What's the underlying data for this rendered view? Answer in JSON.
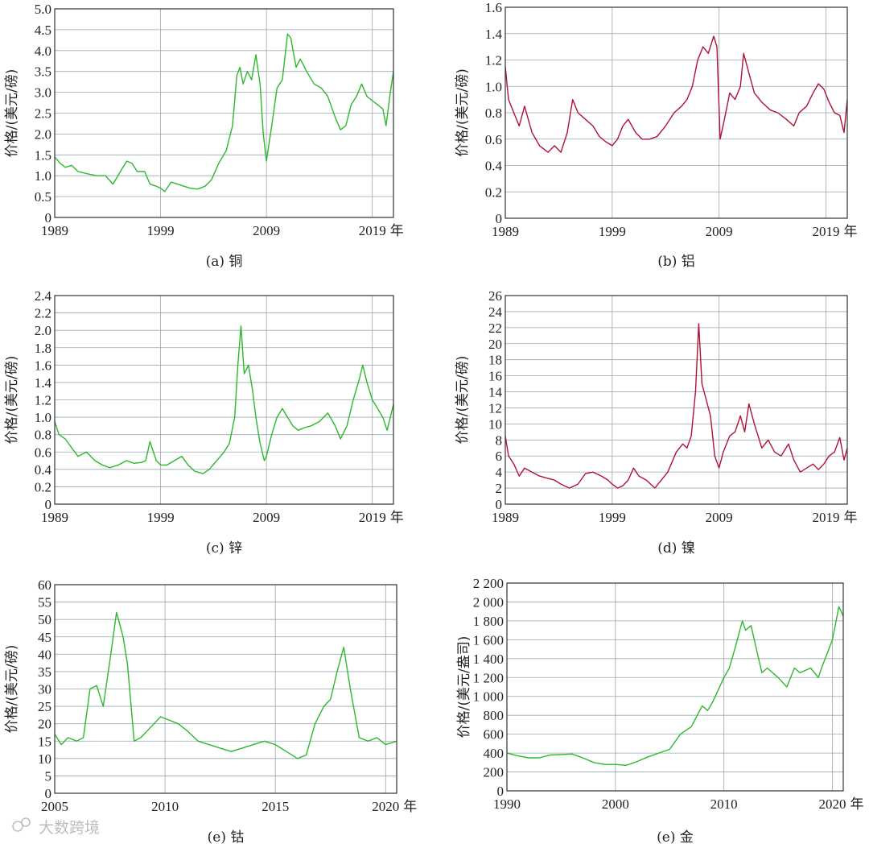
{
  "watermark": "大数跨境",
  "palette": {
    "green": "#2db82d",
    "red": "#b01236",
    "grid": "#9aa7b3",
    "axis": "#333333"
  },
  "chart_data": [
    {
      "id": "copper",
      "type": "line",
      "caption": "(a) 铜",
      "color": "#2db82d",
      "ylabel": "价格/(美元/磅)",
      "xlabel_suffix": "年",
      "xlim": [
        1989,
        2021
      ],
      "ylim": [
        0,
        5
      ],
      "yticks": [
        0,
        0.5,
        1.0,
        1.5,
        2.0,
        2.5,
        3.0,
        3.5,
        4.0,
        4.5,
        5.0
      ],
      "ytick_labels": [
        "0",
        "0.5",
        "1.0",
        "1.5",
        "2.0",
        "2.5",
        "3.0",
        "3.5",
        "4.0",
        "4.5",
        "5.0"
      ],
      "xticks": [
        1989,
        1999,
        2009,
        2019
      ],
      "x": [
        1989.0,
        1989.5,
        1990.0,
        1990.6,
        1991.2,
        1992.0,
        1993.0,
        1993.8,
        1994.5,
        1995.2,
        1995.8,
        1996.3,
        1996.8,
        1997.5,
        1998.0,
        1998.6,
        1999.0,
        1999.4,
        2000.0,
        2000.6,
        2001.2,
        2001.8,
        2002.5,
        2003.2,
        2003.8,
        2004.5,
        2005.2,
        2005.8,
        2006.2,
        2006.5,
        2006.8,
        2007.2,
        2007.6,
        2008.0,
        2008.4,
        2008.7,
        2009.0,
        2009.5,
        2010.0,
        2010.5,
        2011.0,
        2011.3,
        2011.8,
        2012.2,
        2012.8,
        2013.5,
        2014.2,
        2014.8,
        2015.5,
        2016.0,
        2016.5,
        2017.0,
        2017.5,
        2018.0,
        2018.5,
        2019.0,
        2019.5,
        2020.0,
        2020.3,
        2020.7,
        2021.0
      ],
      "y": [
        1.45,
        1.3,
        1.2,
        1.25,
        1.1,
        1.05,
        1.0,
        1.0,
        0.8,
        1.1,
        1.35,
        1.3,
        1.1,
        1.1,
        0.8,
        0.75,
        0.7,
        0.62,
        0.85,
        0.8,
        0.75,
        0.7,
        0.68,
        0.75,
        0.9,
        1.3,
        1.6,
        2.2,
        3.4,
        3.6,
        3.2,
        3.5,
        3.3,
        3.9,
        3.2,
        2.0,
        1.35,
        2.2,
        3.1,
        3.3,
        4.4,
        4.3,
        3.6,
        3.8,
        3.5,
        3.2,
        3.1,
        2.9,
        2.4,
        2.1,
        2.2,
        2.7,
        2.9,
        3.2,
        2.9,
        2.8,
        2.7,
        2.6,
        2.2,
        3.0,
        3.5
      ]
    },
    {
      "id": "aluminum",
      "type": "line",
      "caption": "(b) 铝",
      "color": "#b01236",
      "ylabel": "价格/(美元/磅)",
      "xlabel_suffix": "年",
      "xlim": [
        1989,
        2021
      ],
      "ylim": [
        0,
        1.6
      ],
      "yticks": [
        0,
        0.2,
        0.4,
        0.6,
        0.8,
        1.0,
        1.2,
        1.4,
        1.6
      ],
      "ytick_labels": [
        "0",
        "0.2",
        "0.4",
        "0.6",
        "0.8",
        "1.0",
        "1.2",
        "1.4",
        "1.6"
      ],
      "xticks": [
        1989,
        1999,
        2009,
        2019
      ],
      "x": [
        1989.0,
        1989.3,
        1989.8,
        1990.3,
        1990.8,
        1991.5,
        1992.2,
        1993.0,
        1993.6,
        1994.2,
        1994.8,
        1995.3,
        1995.8,
        1996.5,
        1997.2,
        1997.8,
        1998.4,
        1999.0,
        1999.5,
        2000.0,
        2000.5,
        2001.2,
        2001.8,
        2002.5,
        2003.2,
        2004.0,
        2004.8,
        2005.5,
        2006.0,
        2006.5,
        2007.0,
        2007.5,
        2008.0,
        2008.5,
        2008.8,
        2009.1,
        2009.5,
        2010.0,
        2010.5,
        2011.0,
        2011.3,
        2011.8,
        2012.3,
        2013.0,
        2013.8,
        2014.5,
        2015.3,
        2016.0,
        2016.5,
        2017.2,
        2017.8,
        2018.3,
        2018.8,
        2019.3,
        2019.8,
        2020.3,
        2020.7,
        2021.0
      ],
      "y": [
        1.15,
        0.9,
        0.8,
        0.7,
        0.85,
        0.65,
        0.55,
        0.5,
        0.55,
        0.5,
        0.65,
        0.9,
        0.8,
        0.75,
        0.7,
        0.62,
        0.58,
        0.55,
        0.6,
        0.7,
        0.75,
        0.65,
        0.6,
        0.6,
        0.62,
        0.7,
        0.8,
        0.85,
        0.9,
        1.0,
        1.2,
        1.3,
        1.25,
        1.38,
        1.3,
        0.6,
        0.75,
        0.95,
        0.9,
        1.0,
        1.25,
        1.1,
        0.95,
        0.88,
        0.82,
        0.8,
        0.75,
        0.7,
        0.8,
        0.85,
        0.95,
        1.02,
        0.98,
        0.88,
        0.8,
        0.78,
        0.65,
        0.9
      ]
    },
    {
      "id": "zinc",
      "type": "line",
      "caption": "(c) 锌",
      "color": "#2db82d",
      "ylabel": "价格/(美元/磅)",
      "xlabel_suffix": "年",
      "xlim": [
        1989,
        2021
      ],
      "ylim": [
        0,
        2.4
      ],
      "yticks": [
        0,
        0.2,
        0.4,
        0.6,
        0.8,
        1.0,
        1.2,
        1.4,
        1.6,
        1.8,
        2.0,
        2.2,
        2.4
      ],
      "ytick_labels": [
        "0",
        "0.2",
        "0.4",
        "0.6",
        "0.8",
        "1.0",
        "1.2",
        "1.4",
        "1.6",
        "1.8",
        "2.0",
        "2.2",
        "2.4"
      ],
      "xticks": [
        1989,
        1999,
        2009,
        2019
      ],
      "x": [
        1989.0,
        1989.4,
        1990.0,
        1990.6,
        1991.2,
        1992.0,
        1992.8,
        1993.5,
        1994.2,
        1995.0,
        1995.8,
        1996.5,
        1997.2,
        1997.6,
        1998.0,
        1998.6,
        1999.0,
        1999.6,
        2000.3,
        2001.0,
        2001.6,
        2002.2,
        2003.0,
        2003.6,
        2004.3,
        2005.0,
        2005.5,
        2006.0,
        2006.3,
        2006.6,
        2006.9,
        2007.3,
        2007.7,
        2008.0,
        2008.4,
        2008.8,
        2009.0,
        2009.5,
        2010.0,
        2010.5,
        2011.0,
        2011.5,
        2012.0,
        2012.6,
        2013.2,
        2014.0,
        2014.8,
        2015.5,
        2016.0,
        2016.6,
        2017.2,
        2017.8,
        2018.1,
        2018.5,
        2019.0,
        2019.5,
        2020.0,
        2020.4,
        2020.7,
        2021.0
      ],
      "y": [
        0.95,
        0.8,
        0.75,
        0.65,
        0.55,
        0.6,
        0.5,
        0.45,
        0.42,
        0.45,
        0.5,
        0.47,
        0.48,
        0.5,
        0.72,
        0.5,
        0.45,
        0.45,
        0.5,
        0.55,
        0.45,
        0.38,
        0.35,
        0.4,
        0.5,
        0.6,
        0.7,
        1.0,
        1.6,
        2.05,
        1.5,
        1.6,
        1.3,
        1.0,
        0.7,
        0.5,
        0.55,
        0.8,
        1.0,
        1.1,
        1.0,
        0.9,
        0.85,
        0.88,
        0.9,
        0.95,
        1.05,
        0.9,
        0.75,
        0.9,
        1.2,
        1.45,
        1.6,
        1.4,
        1.2,
        1.1,
        1.0,
        0.85,
        1.0,
        1.15
      ]
    },
    {
      "id": "nickel",
      "type": "line",
      "caption": "(d) 镍",
      "color": "#b01236",
      "ylabel": "价格/(美元/磅)",
      "xlabel_suffix": "年",
      "xlim": [
        1989,
        2021
      ],
      "ylim": [
        0,
        26
      ],
      "yticks": [
        0,
        2,
        4,
        6,
        8,
        10,
        12,
        14,
        16,
        18,
        20,
        22,
        24,
        26
      ],
      "ytick_labels": [
        "0",
        "2",
        "4",
        "6",
        "8",
        "10",
        "12",
        "14",
        "16",
        "18",
        "20",
        "22",
        "24",
        "26"
      ],
      "xticks": [
        1989,
        1999,
        2009,
        2019
      ],
      "x": [
        1989.0,
        1989.3,
        1989.8,
        1990.3,
        1990.8,
        1991.5,
        1992.2,
        1993.0,
        1993.6,
        1994.2,
        1995.0,
        1995.8,
        1996.5,
        1997.2,
        1998.0,
        1998.6,
        1999.0,
        1999.5,
        2000.0,
        2000.5,
        2001.0,
        2001.5,
        2002.2,
        2003.0,
        2003.6,
        2004.2,
        2005.0,
        2005.6,
        2006.0,
        2006.4,
        2006.8,
        2007.1,
        2007.4,
        2007.7,
        2008.2,
        2008.6,
        2009.0,
        2009.4,
        2010.0,
        2010.5,
        2011.0,
        2011.4,
        2011.8,
        2012.3,
        2013.0,
        2013.6,
        2014.2,
        2014.8,
        2015.5,
        2016.0,
        2016.6,
        2017.2,
        2017.8,
        2018.3,
        2018.8,
        2019.3,
        2019.8,
        2020.3,
        2020.7,
        2021.0
      ],
      "y": [
        8.5,
        6.0,
        5.0,
        3.5,
        4.5,
        4.0,
        3.5,
        3.2,
        3.0,
        2.5,
        2.0,
        2.5,
        3.8,
        4.0,
        3.5,
        3.0,
        2.5,
        2.0,
        2.3,
        3.0,
        4.5,
        3.5,
        3.0,
        2.0,
        3.0,
        4.0,
        6.5,
        7.5,
        7.0,
        8.5,
        14.0,
        22.5,
        15.0,
        13.5,
        11.0,
        6.0,
        4.5,
        6.5,
        8.5,
        9.0,
        11.0,
        9.0,
        12.5,
        10.0,
        7.0,
        8.0,
        6.5,
        6.0,
        7.5,
        5.5,
        4.0,
        4.5,
        5.0,
        4.3,
        5.0,
        6.0,
        6.5,
        8.3,
        5.5,
        7.0
      ]
    },
    {
      "id": "cobalt",
      "type": "line",
      "caption": "(e) 钴",
      "color": "#2db82d",
      "ylabel": "价格/(美元/磅)",
      "xlabel_suffix": "年",
      "xlim": [
        2005,
        2020.5
      ],
      "ylim": [
        0,
        60
      ],
      "yticks": [
        0,
        5,
        10,
        15,
        20,
        25,
        30,
        35,
        40,
        45,
        50,
        55,
        60
      ],
      "ytick_labels": [
        "0",
        "5",
        "10",
        "15",
        "20",
        "25",
        "30",
        "35",
        "40",
        "45",
        "50",
        "55",
        "60"
      ],
      "xticks": [
        2005,
        2010,
        2015,
        2020
      ],
      "x": [
        2005.0,
        2005.3,
        2005.6,
        2006.0,
        2006.3,
        2006.6,
        2006.9,
        2007.2,
        2007.5,
        2007.8,
        2008.1,
        2008.3,
        2008.6,
        2008.9,
        2009.2,
        2009.5,
        2009.8,
        2010.2,
        2010.6,
        2011.0,
        2011.5,
        2012.0,
        2012.5,
        2013.0,
        2013.5,
        2014.0,
        2014.5,
        2015.0,
        2015.5,
        2016.0,
        2016.4,
        2016.8,
        2017.2,
        2017.5,
        2017.8,
        2018.1,
        2018.4,
        2018.8,
        2019.2,
        2019.6,
        2020.0,
        2020.5
      ],
      "y": [
        17,
        14,
        16,
        15,
        16,
        30,
        31,
        25,
        38,
        52,
        45,
        37,
        15,
        16,
        18,
        20,
        22,
        21,
        20,
        18,
        15,
        14,
        13,
        12,
        13,
        14,
        15,
        14,
        12,
        10,
        11,
        20,
        25,
        27,
        35,
        42,
        30,
        16,
        15,
        16,
        14,
        15
      ]
    },
    {
      "id": "gold",
      "type": "line",
      "caption": "(e) 金",
      "color": "#2db82d",
      "ylabel": "价格/(美元/盎司)",
      "xlabel_suffix": "年",
      "xlim": [
        1990,
        2021
      ],
      "ylim": [
        0,
        2200
      ],
      "yticks": [
        0,
        200,
        400,
        600,
        800,
        1000,
        1200,
        1400,
        1600,
        1800,
        2000,
        2200
      ],
      "ytick_labels": [
        "0",
        "200",
        "400",
        "600",
        "800",
        "1 000",
        "1 200",
        "1 400",
        "1 600",
        "1 800",
        "2 000",
        "2 200"
      ],
      "xticks": [
        1990,
        2000,
        2010,
        2020
      ],
      "x": [
        1990.0,
        1991.0,
        1992.0,
        1993.0,
        1994.0,
        1995.0,
        1996.0,
        1997.0,
        1998.0,
        1999.0,
        2000.0,
        2001.0,
        2002.0,
        2003.0,
        2004.0,
        2005.0,
        2006.0,
        2007.0,
        2008.0,
        2008.5,
        2009.0,
        2010.0,
        2010.5,
        2011.0,
        2011.7,
        2012.0,
        2012.5,
        2013.0,
        2013.5,
        2014.0,
        2015.0,
        2015.8,
        2016.5,
        2017.0,
        2018.0,
        2018.7,
        2019.0,
        2019.5,
        2020.0,
        2020.6,
        2021.0
      ],
      "y": [
        400,
        370,
        350,
        350,
        380,
        385,
        390,
        350,
        300,
        280,
        280,
        270,
        310,
        360,
        400,
        440,
        600,
        680,
        900,
        850,
        950,
        1200,
        1300,
        1500,
        1800,
        1700,
        1750,
        1500,
        1250,
        1300,
        1200,
        1100,
        1300,
        1250,
        1300,
        1200,
        1300,
        1450,
        1600,
        1950,
        1850
      ]
    }
  ]
}
